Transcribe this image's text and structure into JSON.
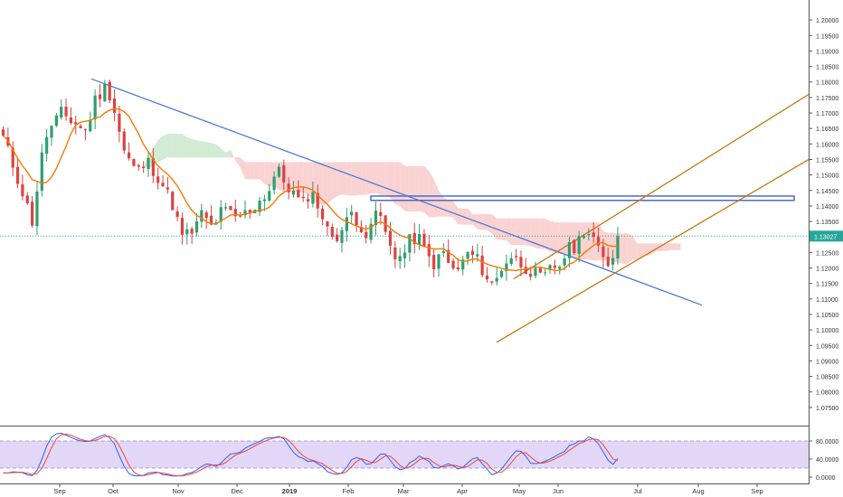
{
  "chart_data": [
    {
      "type": "candlestick",
      "title": "",
      "xlabel": "",
      "ylabel": "",
      "ylim": [
        1.07,
        1.205
      ],
      "x_ticks": [
        "Sep",
        "Oct",
        "Nov",
        "Dec",
        "2019",
        "Feb",
        "Mar",
        "Apr",
        "May",
        "Jun",
        "Jul",
        "Aug",
        "Sep"
      ],
      "y_ticks": [
        "1.20000",
        "1.19500",
        "1.19000",
        "1.18500",
        "1.18000",
        "1.17500",
        "1.17000",
        "1.16500",
        "1.16000",
        "1.15500",
        "1.15000",
        "1.14500",
        "1.14000",
        "1.13500",
        "1.13000",
        "1.12500",
        "1.12000",
        "1.11500",
        "1.11000",
        "1.10500",
        "1.10000",
        "1.09500",
        "1.09000",
        "1.08500",
        "1.08000",
        "1.07500"
      ],
      "last_price": "1.13027",
      "grid": false,
      "x_range_weeks": [
        0,
        55
      ],
      "price_path": [
        [
          0,
          1.162
        ],
        [
          2,
          1.147
        ],
        [
          3.5,
          1.135
        ],
        [
          5,
          1.162
        ],
        [
          7,
          1.17
        ],
        [
          8,
          1.168
        ],
        [
          10,
          1.164
        ],
        [
          11,
          1.174
        ],
        [
          12.5,
          1.179
        ],
        [
          13.5,
          1.17
        ],
        [
          14.5,
          1.158
        ],
        [
          16,
          1.151
        ],
        [
          17.5,
          1.154
        ],
        [
          19,
          1.148
        ],
        [
          20.5,
          1.14
        ],
        [
          21.5,
          1.13
        ],
        [
          23,
          1.132
        ],
        [
          24,
          1.138
        ],
        [
          25,
          1.133
        ],
        [
          26.5,
          1.139
        ],
        [
          28,
          1.136
        ],
        [
          29.5,
          1.138
        ],
        [
          31,
          1.142
        ],
        [
          32,
          1.145
        ],
        [
          33,
          1.152
        ],
        [
          34,
          1.147
        ],
        [
          35,
          1.144
        ],
        [
          36,
          1.14
        ],
        [
          37,
          1.145
        ],
        [
          38,
          1.14
        ],
        [
          39,
          1.132
        ],
        [
          40,
          1.13
        ],
        [
          41,
          1.133
        ],
        [
          42,
          1.138
        ],
        [
          43,
          1.134
        ],
        [
          44,
          1.129
        ],
        [
          45,
          1.14
        ],
        [
          46,
          1.131
        ],
        [
          47,
          1.125
        ],
        [
          48,
          1.123
        ],
        [
          49,
          1.129
        ],
        [
          50,
          1.13
        ],
        [
          51,
          1.124
        ],
        [
          52,
          1.121
        ],
        [
          53,
          1.125
        ],
        [
          54,
          1.119
        ],
        [
          55,
          1.12
        ],
        [
          56,
          1.125
        ],
        [
          57,
          1.123
        ],
        [
          58,
          1.118
        ],
        [
          59,
          1.114
        ],
        [
          60,
          1.12
        ],
        [
          61,
          1.124
        ],
        [
          62,
          1.122
        ],
        [
          63,
          1.12
        ],
        [
          64,
          1.118
        ],
        [
          65,
          1.116
        ],
        [
          66,
          1.12
        ],
        [
          67,
          1.121
        ],
        [
          68,
          1.126
        ],
        [
          69,
          1.127
        ],
        [
          70,
          1.133
        ],
        [
          71,
          1.13
        ],
        [
          72,
          1.123
        ],
        [
          73,
          1.121
        ],
        [
          74,
          1.13
        ]
      ],
      "x_labels_at_index": [
        2.5,
        15.5,
        25.5,
        33,
        42.5,
        50.5,
        57.5,
        67.5,
        74.5,
        83.5,
        95,
        105,
        115
      ],
      "annotations": [
        {
          "type": "descending-trendline",
          "from": [
            13,
            1.181
          ],
          "to": [
            98,
            1.108
          ],
          "color": "#4b7bd6"
        },
        {
          "type": "resistance-rectangle",
          "x_range": [
            49.5,
            107
          ],
          "y_range": [
            1.1418,
            1.1432
          ],
          "color": "#4b6bc8"
        },
        {
          "type": "channel-upper",
          "from": [
            69,
            1.1165
          ],
          "to": [
            120,
            1.176
          ],
          "color": "#c07a10"
        },
        {
          "type": "channel-lower",
          "from": [
            69,
            1.096
          ],
          "to": [
            120,
            1.155
          ],
          "color": "#c07a10"
        }
      ],
      "indicators": {
        "moving_average_color": "#f57c00",
        "ichimoku_bearish_cloud_color": "#f9caca",
        "ichimoku_bullish_cloud_color": "#c9e8cc",
        "candle_up_color": "#2e9e6e",
        "candle_down_color": "#dc4242",
        "last_price_line_color": "#26a69a"
      }
    },
    {
      "type": "oscillator",
      "title": "",
      "ylim": [
        0,
        100
      ],
      "y_ticks": [
        "80.0000",
        "40.0000",
        "0.0000"
      ],
      "band_levels": [
        20,
        80
      ],
      "band_color": "#d9c9f5",
      "series": [
        {
          "color": "#2962ff"
        },
        {
          "color": "#f44336"
        }
      ]
    }
  ]
}
